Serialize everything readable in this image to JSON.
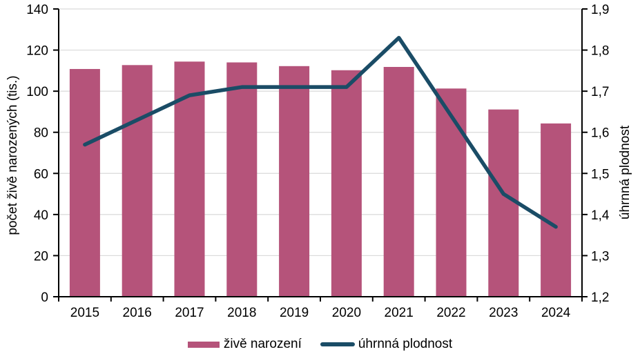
{
  "figure": {
    "background": "#ffffff"
  },
  "chart_data": {
    "type": "combo-bar-line",
    "categories": [
      "2015",
      "2016",
      "2017",
      "2018",
      "2019",
      "2020",
      "2021",
      "2022",
      "2023",
      "2024"
    ],
    "series": [
      {
        "name": "živě narození",
        "type": "bar",
        "axis": "left",
        "color": "#b5537a",
        "values": [
          110.8,
          112.7,
          114.4,
          114.0,
          112.2,
          110.2,
          111.8,
          101.3,
          91.1,
          84.3
        ]
      },
      {
        "name": "úhrnná plodnost",
        "type": "line",
        "axis": "right",
        "color": "#1a4c66",
        "values": [
          1.57,
          1.63,
          1.69,
          1.71,
          1.71,
          1.71,
          1.83,
          1.64,
          1.45,
          1.37
        ]
      }
    ],
    "left_axis": {
      "label": "počet živě narozených (tis.)",
      "min": 0,
      "max": 140,
      "step": 20,
      "tick_labels": [
        "0",
        "20",
        "40",
        "60",
        "80",
        "100",
        "120",
        "140"
      ]
    },
    "right_axis": {
      "label": "úhrnná plodnost",
      "min": 1.2,
      "max": 1.9,
      "step": 0.1,
      "tick_labels": [
        "1,2",
        "1,3",
        "1,4",
        "1,5",
        "1,6",
        "1,7",
        "1,8",
        "1,9"
      ]
    },
    "grid": true,
    "grid_color": "#d9d9d9",
    "axis_color": "#000000",
    "legend_position": "bottom"
  }
}
